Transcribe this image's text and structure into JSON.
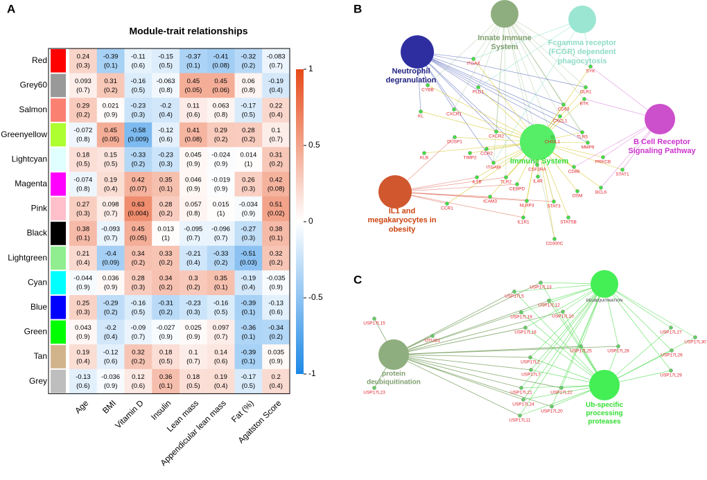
{
  "panel_labels": [
    "A",
    "B",
    "C"
  ],
  "chart_data": {
    "type": "heatmap",
    "title": "Module-trait relationships",
    "rows": [
      "Red",
      "Grey60",
      "Salmon",
      "Greenyellow",
      "Lightcyan",
      "Magenta",
      "Pink",
      "Black",
      "Lightgreen",
      "Cyan",
      "Blue",
      "Green",
      "Tan",
      "Grey"
    ],
    "row_colors": [
      "#ff0000",
      "#999999",
      "#fa8072",
      "#adff2f",
      "#e0ffff",
      "#ff00ff",
      "#ffc0cb",
      "#000000",
      "#90ee90",
      "#00ffff",
      "#0000ff",
      "#00ff00",
      "#d2b48c",
      "#bebebe"
    ],
    "columns": [
      "Age",
      "BMI",
      "Vitamin D",
      "Insulin",
      "Lean mass",
      "Appendicular lean mass",
      "Fat (%)",
      "Agatston Score"
    ],
    "values": [
      [
        0.24,
        -0.39,
        -0.11,
        -0.15,
        -0.37,
        -0.41,
        -0.32,
        -0.083
      ],
      [
        0.093,
        0.31,
        -0.16,
        -0.063,
        0.45,
        0.45,
        0.06,
        -0.19
      ],
      [
        0.29,
        0.021,
        -0.23,
        -0.2,
        0.11,
        0.063,
        -0.17,
        0.22
      ],
      [
        -0.072,
        0.45,
        -0.58,
        -0.12,
        0.41,
        0.29,
        0.28,
        0.1
      ],
      [
        0.18,
        0.15,
        -0.33,
        -0.23,
        0.045,
        -0.024,
        0.014,
        0.31
      ],
      [
        -0.074,
        0.19,
        0.42,
        0.35,
        0.046,
        -0.019,
        0.26,
        0.42
      ],
      [
        0.27,
        0.098,
        0.63,
        0.28,
        0.057,
        0.015,
        -0.034,
        0.51
      ],
      [
        0.38,
        -0.093,
        0.45,
        0.013,
        -0.095,
        -0.096,
        -0.27,
        0.38
      ],
      [
        0.21,
        -0.4,
        0.34,
        0.33,
        -0.21,
        -0.33,
        -0.51,
        0.32
      ],
      [
        -0.044,
        0.036,
        0.28,
        0.34,
        0.3,
        0.35,
        -0.19,
        -0.035
      ],
      [
        0.25,
        -0.29,
        -0.16,
        -0.31,
        -0.23,
        -0.16,
        -0.39,
        -0.13
      ],
      [
        0.043,
        -0.2,
        -0.09,
        -0.027,
        0.025,
        0.097,
        -0.36,
        -0.34
      ],
      [
        0.19,
        -0.12,
        0.32,
        0.18,
        0.1,
        0.14,
        -0.39,
        0.035
      ],
      [
        -0.13,
        -0.036,
        0.12,
        0.36,
        0.18,
        0.19,
        -0.17,
        0.2
      ]
    ],
    "p_labels": [
      [
        "(0.3)",
        "(0.1)",
        "(0.6)",
        "(0.5)",
        "(0.1)",
        "(0.08)",
        "(0.2)",
        "(0.7)"
      ],
      [
        "(0.7)",
        "(0.2)",
        "(0.5)",
        "(0.8)",
        "(0.05)",
        "(0.06)",
        "(0.8)",
        "(0.4)"
      ],
      [
        "(0.2)",
        "(0.9)",
        "(0.3)",
        "(0.4)",
        "(0.6)",
        "(0.8)",
        "(0.5)",
        "(0.4)"
      ],
      [
        "(0.8)",
        "(0.05)",
        "(0.009)",
        "(0.6)",
        "(0.08)",
        "(0.2)",
        "(0.2)",
        "(0.7)"
      ],
      [
        "(0.5)",
        "(0.5)",
        "(0.2)",
        "(0.3)",
        "(0.9)",
        "(0.9)",
        "(1)",
        "(0.2)"
      ],
      [
        "(0.8)",
        "(0.4)",
        "(0.07)",
        "(0.1)",
        "(0.9)",
        "(0.9)",
        "(0.3)",
        "(0.08)"
      ],
      [
        "(0.3)",
        "(0.7)",
        "(0.004)",
        "(0.2)",
        "(0.8)",
        "(1)",
        "(0.9)",
        "(0.02)"
      ],
      [
        "(0.1)",
        "(0.7)",
        "(0.05)",
        "(1)",
        "(0.7)",
        "(0.7)",
        "(0.3)",
        "(0.1)"
      ],
      [
        "(0.4)",
        "(0.09)",
        "(0.2)",
        "(0.2)",
        "(0.4)",
        "(0.2)",
        "(0.03)",
        "(0.2)"
      ],
      [
        "(0.9)",
        "(0.9)",
        "(0.3)",
        "(0.2)",
        "(0.2)",
        "(0.1)",
        "(0.4)",
        "(0.9)"
      ],
      [
        "(0.3)",
        "(0.2)",
        "(0.5)",
        "(0.2)",
        "(0.3)",
        "(0.5)",
        "(0.1)",
        "(0.6)"
      ],
      [
        "(0.9)",
        "(0.4)",
        "(0.7)",
        "(0.9)",
        "(0.9)",
        "(0.7)",
        "(0.1)",
        "(0.2)"
      ],
      [
        "(0.4)",
        "(0.6)",
        "(0.2)",
        "(0.5)",
        "(0.7)",
        "(0.6)",
        "(0.1)",
        "(0.9)"
      ],
      [
        "(0.6)",
        "(0.9)",
        "(0.6)",
        "(0.1)",
        "(0.5)",
        "(0.4)",
        "(0.5)",
        "(0.4)"
      ]
    ],
    "colorbar": {
      "lim": [
        -1,
        1
      ],
      "ticks": [
        1,
        0.5,
        0,
        -0.5,
        -1
      ],
      "colors": [
        "#1e88e5",
        "#ffffff",
        "#e64a19"
      ]
    }
  },
  "network_b": {
    "hubs": [
      {
        "label": [
          "Innate Immune",
          "System"
        ],
        "color": "#8fae7f",
        "text_color": "#7f9f6f"
      },
      {
        "label": [
          "Fcgamma receptor",
          "(FCGR) dependent",
          "phagocytosis"
        ],
        "color": "#9be6d2",
        "text_color": "#8fdcc6"
      },
      {
        "label": [
          "Neutrophil",
          "degranulation"
        ],
        "color": "#2e2ea0",
        "text_color": "#1f1f80"
      },
      {
        "label": [
          "Immune System"
        ],
        "color": "#55ee66",
        "text_color": "#33dd33"
      },
      {
        "label": [
          "B Cell Receptor",
          "Signaling Pathway"
        ],
        "color": "#cc4fcc",
        "text_color": "#cc33cc"
      },
      {
        "label": [
          "IL1 and",
          "megakaryocytes in",
          "obesity"
        ],
        "color": "#d0572e",
        "text_color": "#cc4411"
      }
    ],
    "genes": [
      "ITGAX",
      "CYBB",
      "PLD1",
      "CXCR1",
      "KL",
      "OLR1",
      "SYK",
      "CD63",
      "CXCL1",
      "BTK",
      "CXCR2",
      "CHI3L1",
      "TLR5",
      "DUSP1",
      "KLB",
      "TIMP2",
      "CCR2",
      "MMP9",
      "PRKCB",
      "ITGAM",
      "CSF2RA",
      "CD86",
      "STAT1",
      "IL1B",
      "TLR2",
      "IL4R",
      "CEBPD",
      "OSM",
      "BCL6",
      "ICAM3",
      "NLRP3",
      "STAT3",
      "CCR1",
      "IL1R1",
      "STAT5B",
      "CD300C"
    ]
  },
  "network_c": {
    "hubs": [
      {
        "label": [
          "DEUBIQUITINATION"
        ],
        "color": "#44ee55",
        "text_color": "#666666"
      },
      {
        "label": [
          "protein",
          "deubiquitination"
        ],
        "color": "#8fae7f",
        "text_color": "#7f9f6f"
      },
      {
        "label": [
          "Ub-specific",
          "processing",
          "proteases"
        ],
        "color": "#44ee55",
        "text_color": "#33dd33"
      }
    ],
    "genes": [
      "USP17L15",
      "OTUD1",
      "USP17L23",
      "USP17L13",
      "USP17L5",
      "USP17L12",
      "USP17L19",
      "USP17L10",
      "USP17L18",
      "USP17L25",
      "USP17L28",
      "USP17L2",
      "USP17L7",
      "USP17L21",
      "USP17L22",
      "USP17L24",
      "USP17L20",
      "USP17L11",
      "USP17L27",
      "USP17L30",
      "USP17L26",
      "USP17L29"
    ]
  }
}
